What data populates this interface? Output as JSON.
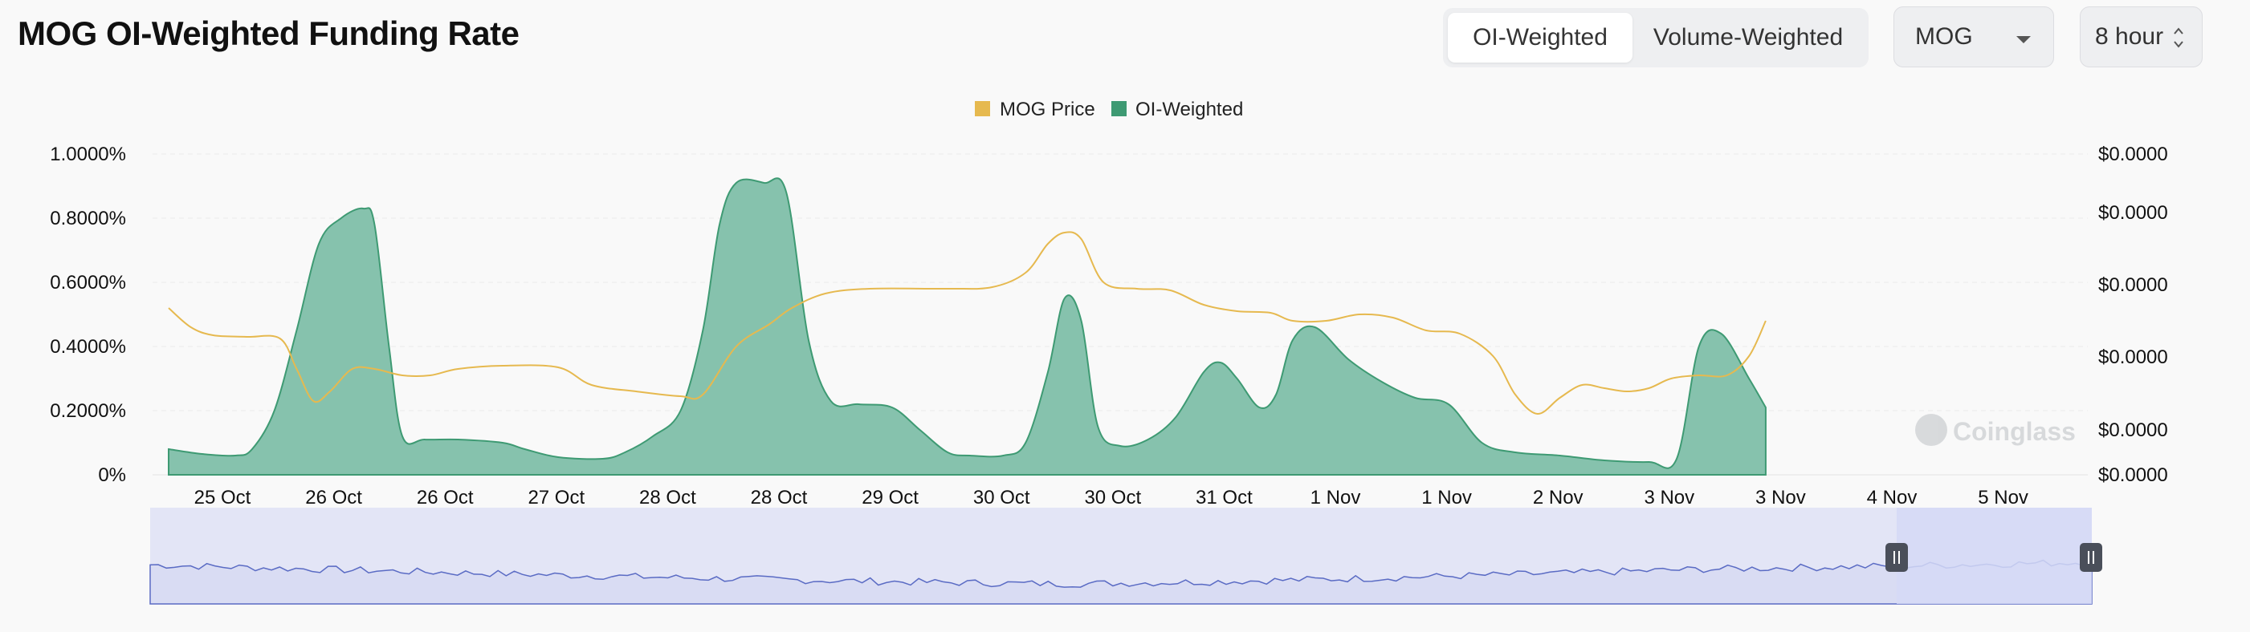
{
  "header": {
    "title": "MOG OI-Weighted Funding Rate",
    "tab_oi": "OI-Weighted",
    "tab_volume": "Volume-Weighted",
    "coin_select": "MOG",
    "interval_select": "8 hour"
  },
  "watermark": "Coinglass",
  "colors": {
    "oi_fill": "#86c2ad",
    "oi_stroke": "#3e9a73",
    "price_line": "#e6b94f",
    "navigator_fill": "#e3e5f6",
    "navigator_line": "#5a6bc4",
    "navigator_selected": "#d5d9f6"
  },
  "chart_data": {
    "type": "area",
    "x_labels": [
      "25 Oct",
      "26 Oct",
      "26 Oct",
      "27 Oct",
      "28 Oct",
      "28 Oct",
      "29 Oct",
      "30 Oct",
      "30 Oct",
      "31 Oct",
      "1 Nov",
      "1 Nov",
      "2 Nov",
      "3 Nov",
      "3 Nov",
      "4 Nov",
      "5 Nov"
    ],
    "y_left_ticks": [
      "1.0000%",
      "0.8000%",
      "0.6000%",
      "0.4000%",
      "0.2000%",
      "0%"
    ],
    "y_right_ticks": [
      "$0.0000",
      "$0.0000",
      "$0.0000",
      "$0.0000",
      "$0.0000",
      "$0.0000"
    ],
    "ylim_left": [
      0,
      1.0
    ],
    "legend": [
      "MOG Price",
      "OI-Weighted"
    ],
    "legend_position": "top-center",
    "grid": true,
    "series": [
      {
        "name": "OI-Weighted",
        "unit": "%",
        "points": [
          [
            0,
            0.08
          ],
          [
            0.3,
            0.065
          ],
          [
            0.6,
            0.06
          ],
          [
            0.75,
            0.08
          ],
          [
            0.95,
            0.2
          ],
          [
            1.15,
            0.45
          ],
          [
            1.35,
            0.72
          ],
          [
            1.55,
            0.8
          ],
          [
            1.75,
            0.83
          ],
          [
            1.85,
            0.78
          ],
          [
            1.98,
            0.4
          ],
          [
            2.1,
            0.12
          ],
          [
            2.3,
            0.11
          ],
          [
            2.6,
            0.11
          ],
          [
            3.0,
            0.1
          ],
          [
            3.2,
            0.08
          ],
          [
            3.5,
            0.055
          ],
          [
            3.9,
            0.05
          ],
          [
            4.1,
            0.07
          ],
          [
            4.35,
            0.12
          ],
          [
            4.6,
            0.2
          ],
          [
            4.8,
            0.45
          ],
          [
            4.95,
            0.78
          ],
          [
            5.1,
            0.91
          ],
          [
            5.35,
            0.91
          ],
          [
            5.55,
            0.88
          ],
          [
            5.75,
            0.42
          ],
          [
            5.95,
            0.23
          ],
          [
            6.2,
            0.22
          ],
          [
            6.5,
            0.21
          ],
          [
            6.75,
            0.14
          ],
          [
            7.0,
            0.07
          ],
          [
            7.2,
            0.06
          ],
          [
            7.5,
            0.06
          ],
          [
            7.7,
            0.1
          ],
          [
            7.9,
            0.32
          ],
          [
            8.05,
            0.55
          ],
          [
            8.2,
            0.48
          ],
          [
            8.35,
            0.15
          ],
          [
            8.55,
            0.09
          ],
          [
            8.8,
            0.11
          ],
          [
            9.05,
            0.18
          ],
          [
            9.3,
            0.32
          ],
          [
            9.45,
            0.35
          ],
          [
            9.6,
            0.3
          ],
          [
            9.8,
            0.21
          ],
          [
            9.95,
            0.25
          ],
          [
            10.1,
            0.42
          ],
          [
            10.3,
            0.46
          ],
          [
            10.6,
            0.36
          ],
          [
            10.9,
            0.29
          ],
          [
            11.2,
            0.24
          ],
          [
            11.5,
            0.22
          ],
          [
            11.8,
            0.1
          ],
          [
            12.1,
            0.07
          ],
          [
            12.5,
            0.06
          ],
          [
            12.9,
            0.045
          ],
          [
            13.3,
            0.04
          ],
          [
            13.55,
            0.05
          ],
          [
            13.75,
            0.4
          ],
          [
            13.95,
            0.44
          ],
          [
            14.2,
            0.3
          ],
          [
            14.35,
            0.21
          ]
        ]
      },
      {
        "name": "MOG Price",
        "unit": "$",
        "points": [
          [
            0,
            0.52
          ],
          [
            0.2,
            0.46
          ],
          [
            0.4,
            0.435
          ],
          [
            0.7,
            0.43
          ],
          [
            1.0,
            0.425
          ],
          [
            1.15,
            0.33
          ],
          [
            1.3,
            0.23
          ],
          [
            1.45,
            0.26
          ],
          [
            1.65,
            0.33
          ],
          [
            1.85,
            0.33
          ],
          [
            2.1,
            0.31
          ],
          [
            2.35,
            0.31
          ],
          [
            2.6,
            0.33
          ],
          [
            3.0,
            0.34
          ],
          [
            3.5,
            0.335
          ],
          [
            3.8,
            0.28
          ],
          [
            4.2,
            0.26
          ],
          [
            4.6,
            0.245
          ],
          [
            4.8,
            0.25
          ],
          [
            5.1,
            0.4
          ],
          [
            5.4,
            0.47
          ],
          [
            5.6,
            0.52
          ],
          [
            5.9,
            0.565
          ],
          [
            6.3,
            0.58
          ],
          [
            7.0,
            0.58
          ],
          [
            7.4,
            0.585
          ],
          [
            7.7,
            0.63
          ],
          [
            7.9,
            0.72
          ],
          [
            8.05,
            0.755
          ],
          [
            8.2,
            0.735
          ],
          [
            8.4,
            0.6
          ],
          [
            8.7,
            0.58
          ],
          [
            9.0,
            0.575
          ],
          [
            9.3,
            0.53
          ],
          [
            9.6,
            0.51
          ],
          [
            9.9,
            0.505
          ],
          [
            10.1,
            0.48
          ],
          [
            10.4,
            0.48
          ],
          [
            10.7,
            0.5
          ],
          [
            11.0,
            0.49
          ],
          [
            11.3,
            0.45
          ],
          [
            11.6,
            0.44
          ],
          [
            11.9,
            0.37
          ],
          [
            12.1,
            0.25
          ],
          [
            12.3,
            0.19
          ],
          [
            12.5,
            0.24
          ],
          [
            12.7,
            0.28
          ],
          [
            12.9,
            0.27
          ],
          [
            13.1,
            0.26
          ],
          [
            13.3,
            0.27
          ],
          [
            13.5,
            0.3
          ],
          [
            13.75,
            0.31
          ],
          [
            14.0,
            0.31
          ],
          [
            14.2,
            0.37
          ],
          [
            14.35,
            0.48
          ]
        ]
      }
    ]
  }
}
